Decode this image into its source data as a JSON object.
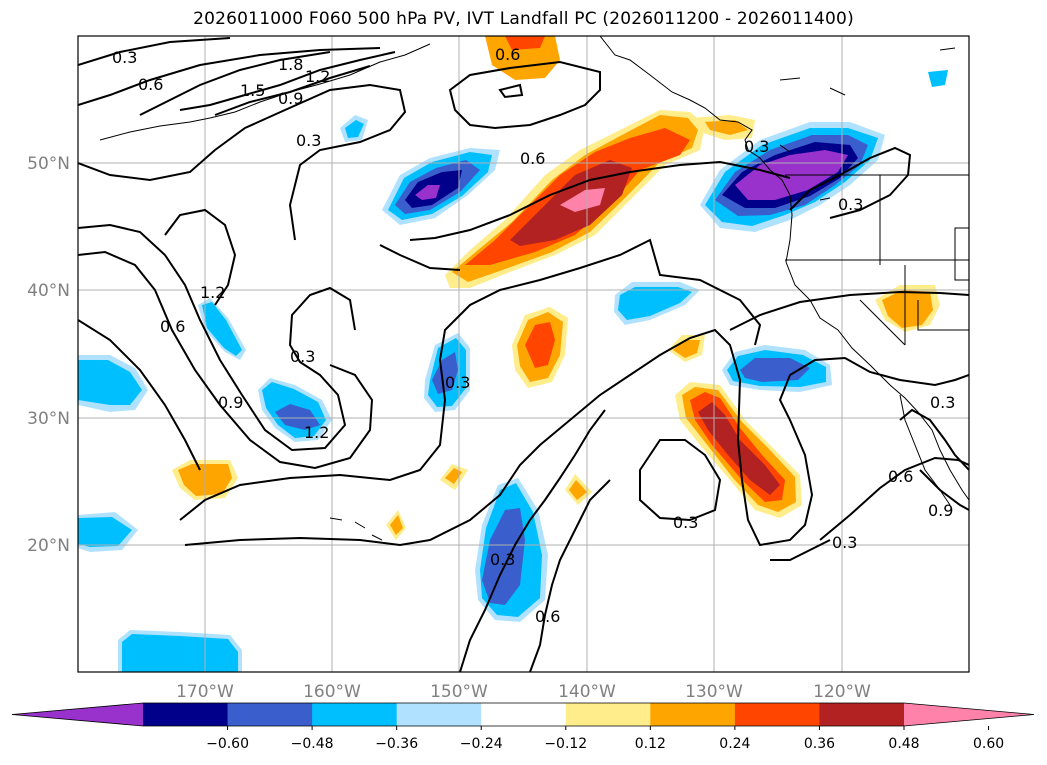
{
  "title": "2026011000 F060 500 hPa PV, IVT Landfall PC (2026011200 - 2026011400)",
  "map": {
    "lon_labels": [
      "170°W",
      "160°W",
      "150°W",
      "140°W",
      "130°W",
      "120°W"
    ],
    "lat_labels": [
      "50°N",
      "40°N",
      "30°N",
      "20°N"
    ],
    "label_color": "#808080",
    "grid_color": "#b0b0b0"
  },
  "contour_labels": [
    "0.3",
    "0.6",
    "1.8",
    "1.5",
    "1.2",
    "0.9",
    "0.6",
    "0.3",
    "1.2",
    "0.6",
    "0.9",
    "0.3",
    "1.2",
    "0.3",
    "0.6",
    "0.3",
    "0.3",
    "0.3",
    "0.6",
    "0.3",
    "0.6",
    "0.9",
    "0.3",
    "0.3"
  ],
  "colorbar": {
    "ticks": [
      "−0.60",
      "−0.48",
      "−0.36",
      "−0.24",
      "−0.12",
      "0.12",
      "0.24",
      "0.36",
      "0.48",
      "0.60"
    ],
    "colors": [
      "#9932cc",
      "#00008b",
      "#3a5fcd",
      "#00bfff",
      "#b0e2ff",
      "#ffffff",
      "#ffec8b",
      "#ffa500",
      "#ff4500",
      "#b22222",
      "#ff82ab"
    ]
  }
}
